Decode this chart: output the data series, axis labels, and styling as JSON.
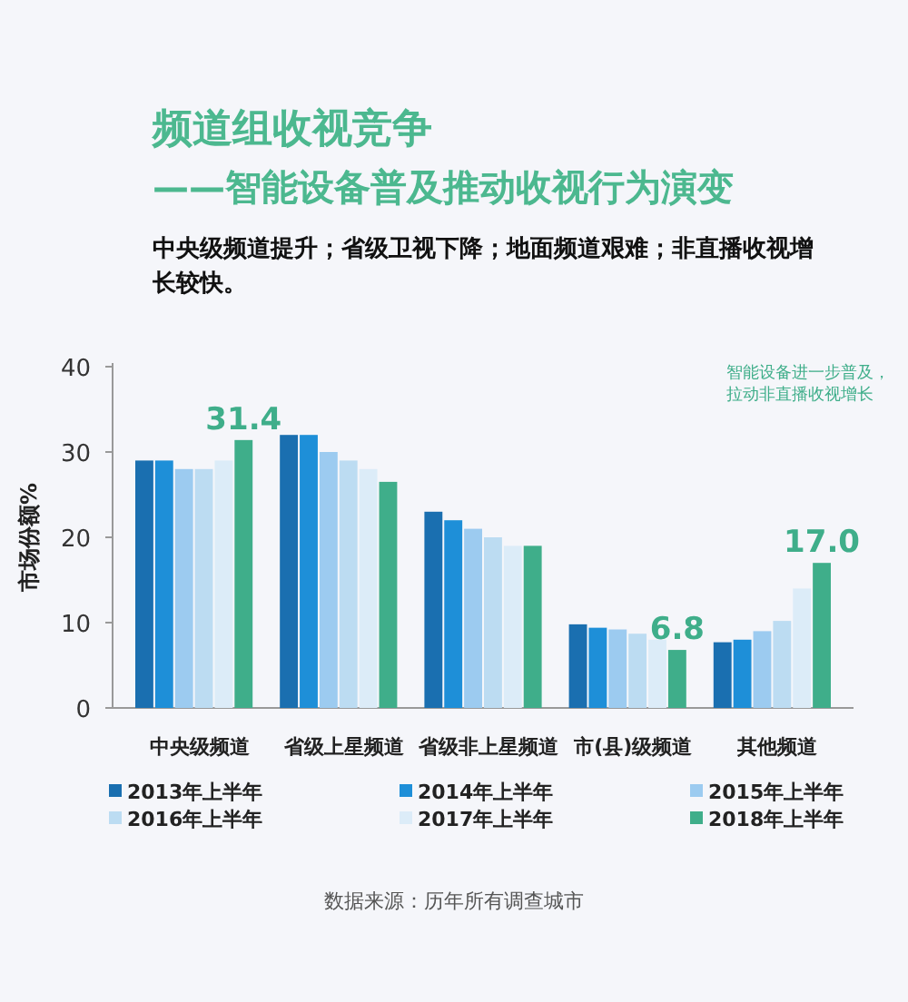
{
  "chart_data": {
    "type": "bar",
    "title": "频道组收视竞争",
    "subtitle": "——智能设备普及推动收视行为演变",
    "ylabel": "市场份额%",
    "annotations": [
      "中央级频道提升；省级卫视下降；地面频道艰难；非直播收视增长较快。",
      "智能设备进一步普及，拉动非直播收视增长",
      "数据来源：历年所有调查城市"
    ],
    "categories": [
      "中央级频道",
      "省级上星频道",
      "省级非上星频道",
      "市(县)级频道",
      "其他频道"
    ],
    "series": [
      {
        "name": "2013年上半年",
        "color": "#1a6fb0",
        "values": [
          29,
          32,
          23,
          9.8,
          7.7
        ]
      },
      {
        "name": "2014年上半年",
        "color": "#1e8fd8",
        "values": [
          29,
          32,
          22,
          9.4,
          8
        ]
      },
      {
        "name": "2015年上半年",
        "color": "#9ccbf0",
        "values": [
          28,
          30,
          21,
          9.2,
          9
        ]
      },
      {
        "name": "2016年上半年",
        "color": "#bcdcf2",
        "values": [
          28,
          29,
          20,
          8.7,
          10.2
        ]
      },
      {
        "name": "2017年上半年",
        "color": "#dcecf8",
        "values": [
          29,
          28,
          19,
          8,
          14
        ]
      },
      {
        "name": "2018年上半年",
        "color": "#3fae8a",
        "values": [
          31.4,
          26.5,
          19,
          6.8,
          17
        ],
        "value_labels": [
          "31.4",
          null,
          null,
          "6.8",
          "17.0"
        ]
      }
    ],
    "ylim": [
      0,
      40
    ],
    "yticks": [
      0,
      10,
      20,
      30,
      40
    ],
    "legend": "bottom"
  }
}
